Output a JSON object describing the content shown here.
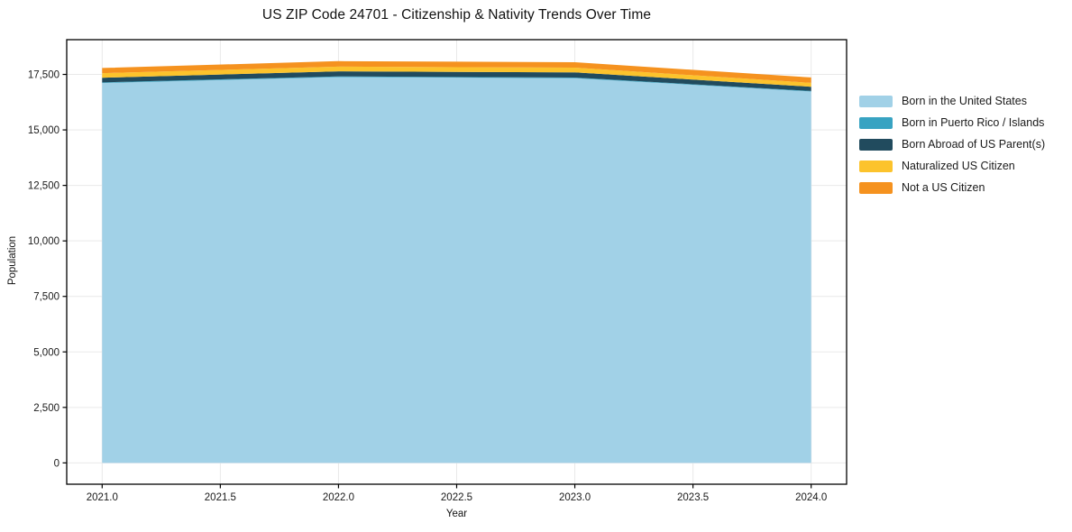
{
  "chart": {
    "title": "US ZIP Code 24701 - Citizenship & Nativity Trends Over Time",
    "xlabel": "Year",
    "ylabel": "Population"
  },
  "chart_data": {
    "type": "area",
    "stacked": true,
    "title": "US ZIP Code 24701 - Citizenship & Nativity Trends Over Time",
    "xlabel": "Year",
    "ylabel": "Population",
    "grid": true,
    "legend_position": "right-outside",
    "x": [
      2021,
      2022,
      2023,
      2024
    ],
    "series": [
      {
        "name": "Born in the United States",
        "color": "#a1d1e7",
        "values": [
          17110,
          17380,
          17330,
          16730
        ]
      },
      {
        "name": "Born in Puerto Rico / Islands",
        "color": "#38a3c2",
        "values": [
          30,
          30,
          30,
          25
        ]
      },
      {
        "name": "Born Abroad of US Parent(s)",
        "color": "#214b5e",
        "values": [
          210,
          230,
          230,
          190
        ]
      },
      {
        "name": "Naturalized US Citizen",
        "color": "#fcc32c",
        "values": [
          210,
          210,
          215,
          175
        ]
      },
      {
        "name": "Not a US Citizen",
        "color": "#f5921f",
        "values": [
          230,
          250,
          245,
          245
        ]
      }
    ],
    "stack_totals": [
      17790,
      18100,
      18050,
      17365
    ],
    "xlim": [
      2020.85,
      2024.15
    ],
    "ylim": [
      -960,
      19065
    ],
    "x_ticks": [
      2021.0,
      2021.5,
      2022.0,
      2022.5,
      2023.0,
      2023.5,
      2024.0
    ],
    "x_tick_labels": [
      "2021.0",
      "2021.5",
      "2022.0",
      "2022.5",
      "2023.0",
      "2023.5",
      "2024.0"
    ],
    "y_ticks": [
      0,
      2500,
      5000,
      7500,
      10000,
      12500,
      15000,
      17500
    ],
    "y_tick_labels": [
      "0",
      "2,500",
      "5,000",
      "7,500",
      "10,000",
      "12,500",
      "15,000",
      "17,500"
    ],
    "grid_color": "#e9e9e9",
    "spine_color": "#000000"
  }
}
